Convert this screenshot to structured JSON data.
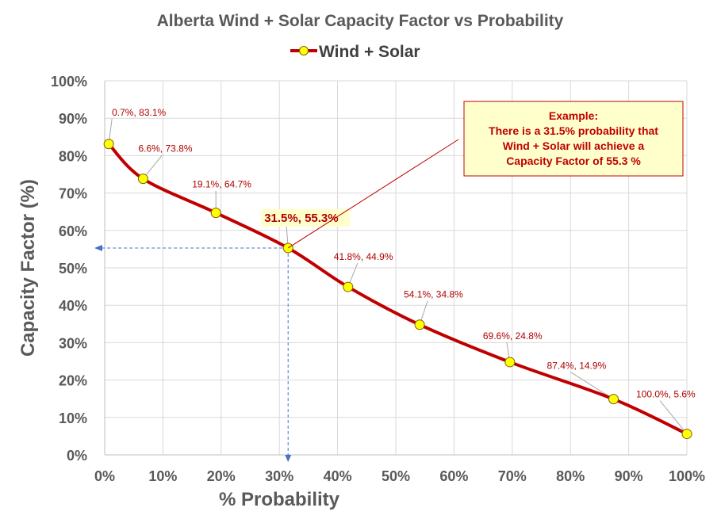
{
  "chart_data": {
    "type": "line",
    "title": "Alberta Wind + Solar Capacity Factor vs Probability",
    "xlabel": "% Probability",
    "ylabel": "Capacity Factor (%)",
    "xlim": [
      0,
      100
    ],
    "ylim": [
      0,
      100
    ],
    "x_ticks": [
      "0%",
      "10%",
      "20%",
      "30%",
      "40%",
      "50%",
      "60%",
      "70%",
      "80%",
      "90%",
      "100%"
    ],
    "y_ticks": [
      "0%",
      "10%",
      "20%",
      "30%",
      "40%",
      "50%",
      "60%",
      "70%",
      "80%",
      "90%",
      "100%"
    ],
    "grid": true,
    "legend_position": "top",
    "series": [
      {
        "name": "Wind + Solar",
        "color": "#c00000",
        "marker_color": "#ffff00",
        "x": [
          0.7,
          6.6,
          19.1,
          31.5,
          41.8,
          54.1,
          69.6,
          87.4,
          100.0
        ],
        "y": [
          83.1,
          73.8,
          64.7,
          55.3,
          44.9,
          34.8,
          24.8,
          14.9,
          5.6
        ]
      }
    ],
    "data_labels": [
      "0.7%, 83.1%",
      "6.6%, 73.8%",
      "19.1%, 64.7%",
      "31.5%, 55.3%",
      "41.8%, 44.9%",
      "54.1%, 34.8%",
      "69.6%, 24.8%",
      "87.4%, 14.9%",
      "100.0%, 5.6%"
    ],
    "highlight_index": 3,
    "annotation": {
      "lines": [
        "Example:",
        "There is a 31.5% probability that",
        "Wind + Solar will achieve a",
        "Capacity Factor of 55.3 %"
      ],
      "fill": "#ffffcc",
      "border": "#c00000"
    }
  }
}
